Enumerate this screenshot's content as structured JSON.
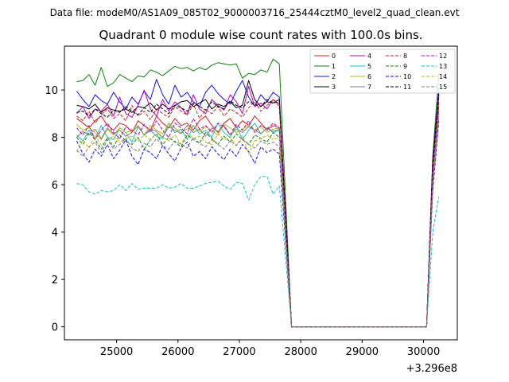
{
  "figure": {
    "suptitle": "Data file: modeM0/AS1A09_085T02_9000003716_25444cztM0_level2_quad_clean.evt",
    "title": "Quadrant 0 module wise count rates with 100.0s bins."
  },
  "chart_data": {
    "type": "line",
    "title": "Quadrant 0 module wise count rates with 100.0s bins.",
    "xlabel": "",
    "ylabel": "",
    "x_offset_label": "+3.296e8",
    "xlim": [
      24150,
      30550
    ],
    "ylim": [
      -0.55,
      11.85
    ],
    "xticks": [
      25000,
      26000,
      27000,
      28000,
      29000,
      30000
    ],
    "yticks": [
      0,
      2,
      4,
      6,
      8,
      10
    ],
    "grid": false,
    "legend": "top-right",
    "legend_columns": 4,
    "x": [
      24350,
      24450,
      24550,
      24650,
      24750,
      24850,
      24950,
      25050,
      25150,
      25250,
      25350,
      25450,
      25550,
      25650,
      25750,
      25850,
      25950,
      26050,
      26150,
      26250,
      26350,
      26450,
      26550,
      26650,
      26750,
      26850,
      26950,
      27050,
      27150,
      27250,
      27350,
      27450,
      27550,
      27650,
      27850,
      30050,
      30150,
      30250
    ],
    "series": [
      {
        "name": "0",
        "color": "#d62020",
        "dash": false,
        "values": [
          8.8,
          8.6,
          8.4,
          8.7,
          8.9,
          8.5,
          8.3,
          8.6,
          8.5,
          8.2,
          8.7,
          8.5,
          8.3,
          8.9,
          8.6,
          8.4,
          8.8,
          8.5,
          8.6,
          8.3,
          8.7,
          8.9,
          8.5,
          8.2,
          8.6,
          8.8,
          8.4,
          8.7,
          8.5,
          8.9,
          8.6,
          8.3,
          8.5,
          8.4,
          0.0,
          0.0,
          6.6,
          9.5
        ]
      },
      {
        "name": "1",
        "color": "#128012",
        "dash": false,
        "values": [
          10.35,
          10.4,
          10.65,
          10.2,
          10.95,
          10.15,
          10.3,
          10.65,
          10.5,
          10.35,
          10.6,
          10.55,
          10.85,
          10.75,
          10.6,
          10.8,
          11.0,
          10.9,
          10.95,
          10.8,
          10.95,
          10.85,
          11.05,
          11.15,
          11.1,
          11.05,
          11.1,
          10.5,
          10.7,
          10.65,
          10.85,
          10.75,
          11.3,
          11.1,
          0.0,
          0.0,
          7.2,
          10.7
        ]
      },
      {
        "name": "2",
        "color": "#1010ee",
        "dash": false,
        "values": [
          9.95,
          9.6,
          9.3,
          9.8,
          9.55,
          9.4,
          9.9,
          9.5,
          9.2,
          9.7,
          9.4,
          9.95,
          9.6,
          10.45,
          9.8,
          9.4,
          10.2,
          9.7,
          9.9,
          9.5,
          9.3,
          9.9,
          10.2,
          9.85,
          9.6,
          9.4,
          9.95,
          10.4,
          9.7,
          9.3,
          9.8,
          9.5,
          9.9,
          9.7,
          0.0,
          0.0,
          7.0,
          10.1
        ]
      },
      {
        "name": "3",
        "color": "#000000",
        "dash": false,
        "values": [
          9.35,
          9.3,
          9.2,
          9.4,
          9.05,
          9.25,
          9.15,
          9.1,
          9.2,
          9.05,
          9.3,
          9.25,
          9.45,
          9.15,
          9.4,
          9.2,
          9.35,
          9.5,
          9.55,
          9.3,
          9.45,
          9.6,
          9.2,
          9.4,
          9.3,
          9.5,
          9.25,
          9.35,
          10.4,
          9.6,
          9.3,
          9.5,
          9.45,
          9.6,
          0.0,
          0.0,
          6.9,
          9.9
        ]
      },
      {
        "name": "4",
        "color": "#c000c0",
        "dash": false,
        "values": [
          9.0,
          9.3,
          8.8,
          9.2,
          9.1,
          9.4,
          8.9,
          9.7,
          9.0,
          8.85,
          9.35,
          10.0,
          9.2,
          8.9,
          9.6,
          9.1,
          9.5,
          9.25,
          8.95,
          9.8,
          9.2,
          9.0,
          9.6,
          9.35,
          9.15,
          9.8,
          9.5,
          9.0,
          10.15,
          9.3,
          9.45,
          9.2,
          9.6,
          9.4,
          0.0,
          0.0,
          6.8,
          9.8
        ]
      },
      {
        "name": "5",
        "color": "#18c4c4",
        "dash": false,
        "values": [
          8.1,
          7.85,
          8.3,
          7.95,
          8.5,
          8.0,
          7.9,
          8.4,
          8.2,
          7.8,
          8.45,
          8.1,
          8.3,
          8.05,
          7.95,
          8.6,
          8.2,
          8.35,
          7.9,
          8.5,
          8.15,
          8.3,
          8.0,
          8.6,
          8.2,
          8.0,
          8.5,
          7.9,
          8.3,
          8.6,
          8.15,
          8.4,
          8.2,
          8.3,
          0.0,
          0.0,
          6.2,
          9.3
        ]
      },
      {
        "name": "6",
        "color": "#bcbc10",
        "dash": false,
        "values": [
          8.55,
          8.3,
          8.4,
          8.2,
          7.9,
          8.35,
          8.1,
          8.4,
          8.2,
          8.3,
          8.45,
          8.1,
          8.5,
          8.3,
          8.15,
          8.6,
          8.4,
          8.2,
          8.35,
          8.5,
          8.25,
          8.45,
          8.3,
          8.1,
          8.55,
          8.4,
          8.2,
          8.35,
          8.5,
          8.3,
          8.45,
          8.2,
          8.35,
          8.4,
          0.0,
          0.0,
          6.3,
          9.4
        ]
      },
      {
        "name": "7",
        "color": "#7f7f7f",
        "dash": false,
        "values": [
          8.0,
          8.25,
          8.1,
          8.35,
          7.95,
          8.4,
          8.15,
          8.3,
          8.05,
          8.2,
          8.5,
          8.1,
          8.35,
          8.25,
          8.0,
          8.45,
          8.3,
          8.15,
          8.5,
          8.2,
          8.35,
          8.05,
          8.4,
          8.25,
          8.5,
          8.1,
          8.35,
          8.2,
          8.45,
          8.3,
          8.15,
          8.4,
          8.25,
          8.35,
          0.0,
          0.0,
          6.2,
          9.2
        ]
      },
      {
        "name": "8",
        "color": "#d62020",
        "dash": true,
        "values": [
          8.9,
          8.7,
          9.1,
          8.6,
          8.95,
          9.2,
          8.8,
          9.0,
          8.7,
          9.35,
          8.9,
          9.1,
          8.75,
          9.2,
          9.0,
          8.85,
          9.3,
          9.1,
          8.95,
          9.4,
          8.8,
          9.15,
          9.0,
          9.3,
          8.9,
          9.2,
          9.05,
          8.85,
          9.25,
          9.5,
          9.1,
          9.35,
          9.6,
          9.3,
          0.0,
          0.0,
          6.9,
          9.7
        ]
      },
      {
        "name": "9",
        "color": "#128012",
        "dash": true,
        "values": [
          8.0,
          7.7,
          8.2,
          7.9,
          7.5,
          8.0,
          7.6,
          8.1,
          7.85,
          7.7,
          8.0,
          7.5,
          7.9,
          8.15,
          7.7,
          8.0,
          7.8,
          7.6,
          8.1,
          7.9,
          7.75,
          8.2,
          7.95,
          7.7,
          8.05,
          7.8,
          8.15,
          7.9,
          7.7,
          8.1,
          7.95,
          7.8,
          8.2,
          8.0,
          0.0,
          0.0,
          6.0,
          9.0
        ]
      },
      {
        "name": "10",
        "color": "#1010ee",
        "dash": true,
        "values": [
          7.85,
          7.3,
          6.95,
          7.5,
          7.2,
          7.7,
          7.1,
          7.45,
          7.9,
          7.2,
          6.85,
          7.5,
          7.35,
          7.1,
          7.65,
          7.3,
          7.0,
          7.55,
          7.8,
          7.2,
          7.4,
          7.1,
          7.6,
          7.3,
          7.05,
          7.5,
          7.2,
          7.7,
          7.4,
          6.9,
          7.6,
          7.35,
          7.5,
          7.3,
          0.0,
          0.0,
          5.7,
          8.7
        ]
      },
      {
        "name": "11",
        "color": "#000000",
        "dash": true,
        "values": [
          9.05,
          9.1,
          8.9,
          9.2,
          9.0,
          8.85,
          9.15,
          9.05,
          9.3,
          9.1,
          8.95,
          9.25,
          9.05,
          9.4,
          9.2,
          9.0,
          9.35,
          9.25,
          9.1,
          9.45,
          9.3,
          9.15,
          9.5,
          9.3,
          9.2,
          9.55,
          9.35,
          9.25,
          9.5,
          9.4,
          9.3,
          9.6,
          9.45,
          9.5,
          0.0,
          0.0,
          6.9,
          9.8
        ]
      },
      {
        "name": "12",
        "color": "#c000c0",
        "dash": true,
        "values": [
          8.4,
          8.1,
          8.5,
          7.9,
          8.3,
          8.6,
          8.2,
          7.95,
          8.45,
          8.3,
          8.1,
          8.55,
          8.2,
          8.7,
          8.3,
          8.0,
          8.6,
          8.4,
          8.15,
          8.8,
          8.35,
          8.5,
          8.2,
          8.6,
          8.45,
          8.1,
          8.55,
          8.3,
          8.7,
          8.2,
          8.5,
          8.35,
          8.6,
          8.4,
          0.0,
          0.0,
          6.4,
          9.4
        ]
      },
      {
        "name": "13",
        "color": "#18c4c4",
        "dash": true,
        "values": [
          6.05,
          6.0,
          5.7,
          5.6,
          5.75,
          5.7,
          5.75,
          6.0,
          5.75,
          6.05,
          5.8,
          5.85,
          5.85,
          5.85,
          6.0,
          5.85,
          5.9,
          6.05,
          5.85,
          5.85,
          5.95,
          6.05,
          6.1,
          6.15,
          5.95,
          5.8,
          6.1,
          6.05,
          5.35,
          6.0,
          6.35,
          6.35,
          5.6,
          5.95,
          0.0,
          0.0,
          4.0,
          5.5
        ]
      },
      {
        "name": "14",
        "color": "#bcbc10",
        "dash": true,
        "values": [
          7.4,
          7.9,
          7.55,
          8.1,
          7.65,
          7.9,
          8.05,
          7.8,
          7.95,
          8.05,
          7.85,
          8.1,
          7.9,
          8.15,
          8.0,
          7.85,
          8.1,
          7.7,
          8.2,
          7.95,
          8.05,
          7.8,
          7.7,
          8.15,
          7.9,
          8.0,
          7.65,
          8.1,
          7.3,
          7.85,
          7.95,
          8.1,
          7.9,
          8.0,
          0.0,
          0.0,
          6.0,
          9.0
        ]
      },
      {
        "name": "15",
        "color": "#7f7f7f",
        "dash": true,
        "values": [
          7.45,
          7.2,
          7.6,
          7.8,
          7.35,
          7.9,
          7.5,
          7.7,
          7.95,
          7.55,
          7.4,
          7.75,
          7.6,
          7.95,
          7.65,
          7.5,
          7.85,
          7.7,
          7.55,
          8.0,
          7.75,
          7.6,
          7.9,
          7.7,
          7.5,
          7.85,
          7.65,
          7.95,
          7.7,
          7.55,
          7.85,
          7.7,
          7.8,
          7.6,
          0.0,
          0.0,
          5.9,
          8.9
        ]
      }
    ]
  }
}
